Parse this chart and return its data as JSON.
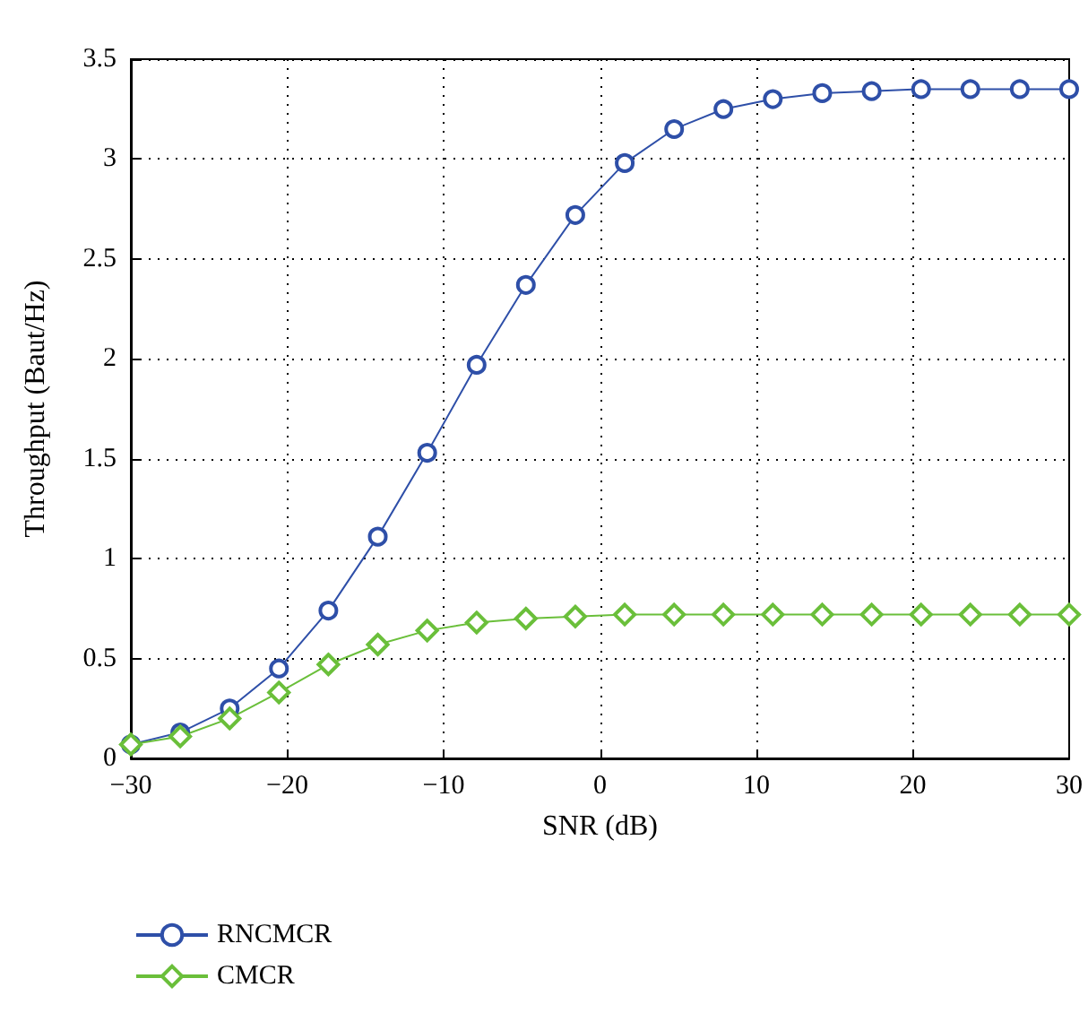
{
  "chart_data": {
    "type": "line",
    "xlabel": "SNR (dB)",
    "ylabel": "Throughput (Baut/Hz)",
    "x": [
      -30,
      -26.84,
      -23.68,
      -20.53,
      -17.37,
      -14.21,
      -11.05,
      -7.89,
      -4.74,
      -1.58,
      1.58,
      4.74,
      7.89,
      11.05,
      14.21,
      17.37,
      20.53,
      23.68,
      26.84,
      30
    ],
    "series": [
      {
        "name": "RNCMCR",
        "color": "#2e4fa8",
        "marker": "circle",
        "values": [
          0.07,
          0.13,
          0.25,
          0.45,
          0.74,
          1.11,
          1.53,
          1.97,
          2.37,
          2.72,
          2.98,
          3.15,
          3.25,
          3.3,
          3.33,
          3.34,
          3.35,
          3.35,
          3.35,
          3.35
        ]
      },
      {
        "name": "CMCR",
        "color": "#6abf3a",
        "marker": "diamond",
        "values": [
          0.07,
          0.11,
          0.2,
          0.33,
          0.47,
          0.57,
          0.64,
          0.68,
          0.7,
          0.71,
          0.72,
          0.72,
          0.72,
          0.72,
          0.72,
          0.72,
          0.72,
          0.72,
          0.72,
          0.72
        ]
      }
    ],
    "xlim": [
      -30,
      30
    ],
    "xticks": [
      -30,
      -20,
      -10,
      0,
      10,
      20,
      30
    ],
    "ylim": [
      0,
      3.5
    ],
    "yticks": [
      0,
      0.5,
      1,
      1.5,
      2,
      2.5,
      3,
      3.5
    ],
    "grid": true,
    "legend": "bottom left",
    "line_style": "solid"
  }
}
